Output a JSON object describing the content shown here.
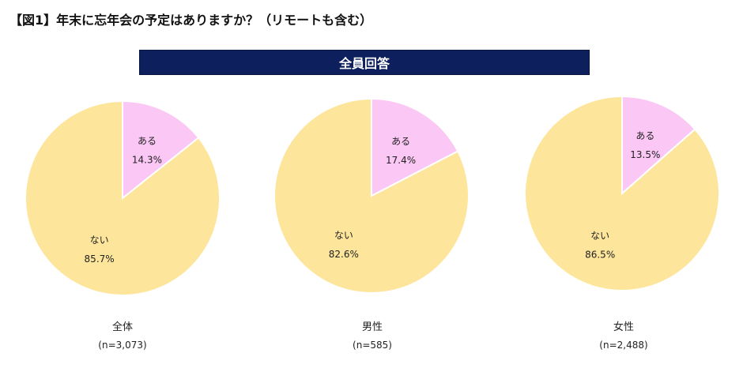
{
  "title": "【図1】年末に忘年会の予定はありますか？（リモートも含む）",
  "banner": "全員回答",
  "chart_data": {
    "type": "pie",
    "title": "全員回答",
    "categories": [
      "ある",
      "ない"
    ],
    "colors": {
      "ある": "#fbc7f5",
      "ない": "#fde59b"
    },
    "charts": [
      {
        "name": "全体",
        "n_label": "(n=3,073)",
        "slices": [
          {
            "label": "ある",
            "value": 14.3,
            "text": "14.3%"
          },
          {
            "label": "ない",
            "value": 85.7,
            "text": "85.7%"
          }
        ]
      },
      {
        "name": "男性",
        "n_label": "(n=585)",
        "slices": [
          {
            "label": "ある",
            "value": 17.4,
            "text": "17.4%"
          },
          {
            "label": "ない",
            "value": 82.6,
            "text": "82.6%"
          }
        ]
      },
      {
        "name": "女性",
        "n_label": "(n=2,488)",
        "slices": [
          {
            "label": "ある",
            "value": 13.5,
            "text": "13.5%"
          },
          {
            "label": "ない",
            "value": 86.5,
            "text": "86.5%"
          }
        ]
      }
    ]
  }
}
